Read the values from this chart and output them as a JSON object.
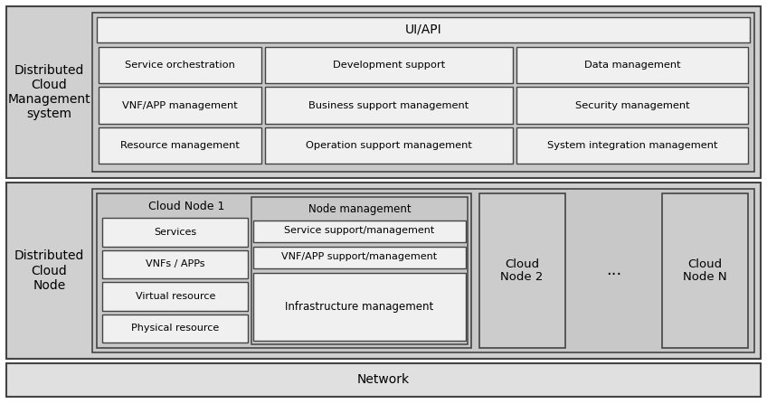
{
  "bg_color": "#ffffff",
  "outer_bg": "#cccccc",
  "section_bg": "#d0d0d0",
  "inner_bg": "#c8c8c8",
  "box_bg": "#f0f0f0",
  "box_border": "#444444",
  "outer_border": "#444444",
  "network_bg": "#e0e0e0",
  "text_color": "#000000",
  "sections": {
    "management": {
      "label": "Distributed\nCloud\nManagement\nsystem",
      "ui_api": "UI/API",
      "row1": [
        "Service orchestration",
        "Development support",
        "Data management"
      ],
      "row2": [
        "VNF/APP management",
        "Business support management",
        "Security management"
      ],
      "row3": [
        "Resource management",
        "Operation support management",
        "System integration management"
      ]
    },
    "node": {
      "label": "Distributed\nCloud\nNode",
      "cloud_node1_label": "Cloud Node 1",
      "left_col": [
        "Services",
        "VNFs / APPs",
        "Virtual resource",
        "Physical resource"
      ],
      "right_col_top": [
        "Node management",
        "Service support/management",
        "VNF/APP support/management"
      ],
      "right_col_bottom": "Infrastructure management",
      "cloud_node2": "Cloud\nNode 2",
      "dots": "...",
      "cloud_nodeN": "Cloud\nNode N"
    },
    "network": {
      "label": "Network"
    }
  }
}
